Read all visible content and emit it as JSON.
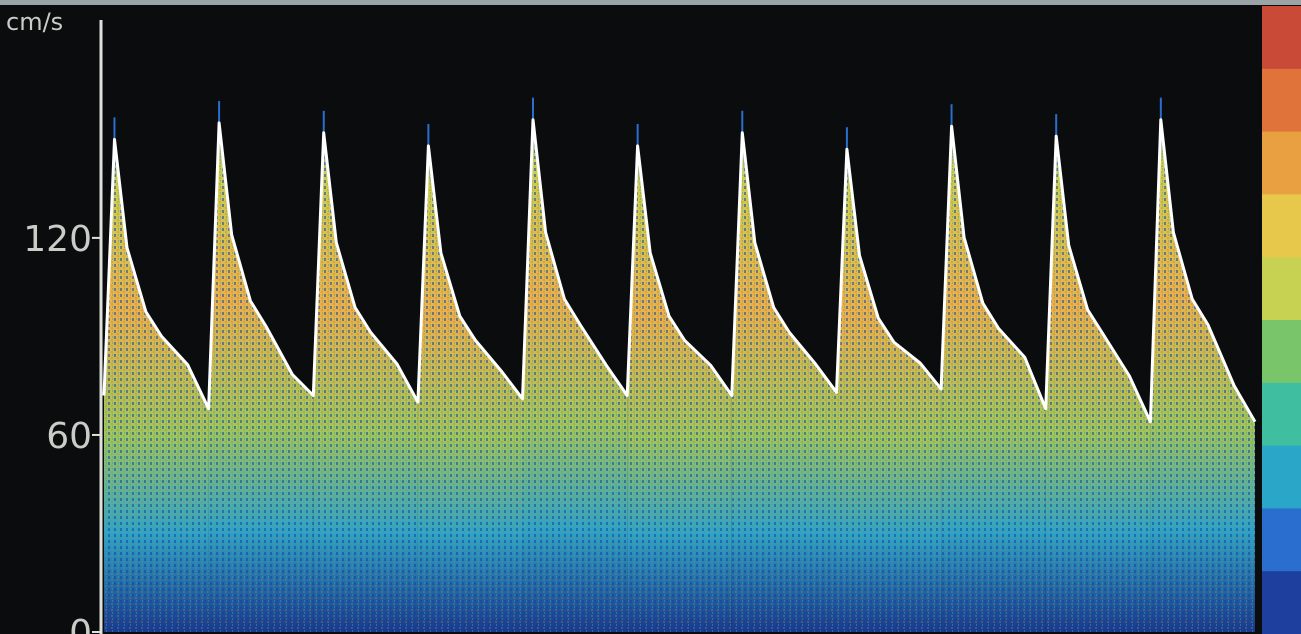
{
  "chart_data": {
    "type": "area",
    "title": "",
    "ylabel": "cm/s",
    "xlabel": "",
    "ylim": [
      0,
      190
    ],
    "yticks": [
      0,
      60,
      120
    ],
    "ytick_labels": [
      "0",
      "60",
      "120"
    ],
    "series": [
      {
        "peak_velocity": [
          150,
          155,
          152,
          148,
          156,
          148,
          152,
          147,
          154,
          151,
          156
        ],
        "trough_velocity": [
          72,
          68,
          72,
          70,
          71,
          72,
          72,
          73,
          74,
          68,
          64
        ]
      }
    ],
    "colormap": [
      "#1f3f9e",
      "#2a6fd0",
      "#2aa6c8",
      "#3fbfa0",
      "#79c66a",
      "#c7d152",
      "#e8c84b",
      "#e8a040",
      "#e0733a",
      "#c94a37"
    ],
    "colors": {
      "envelope": "#ffffff",
      "background": "#0a0c0d",
      "axis": "#dfe2dc"
    }
  }
}
